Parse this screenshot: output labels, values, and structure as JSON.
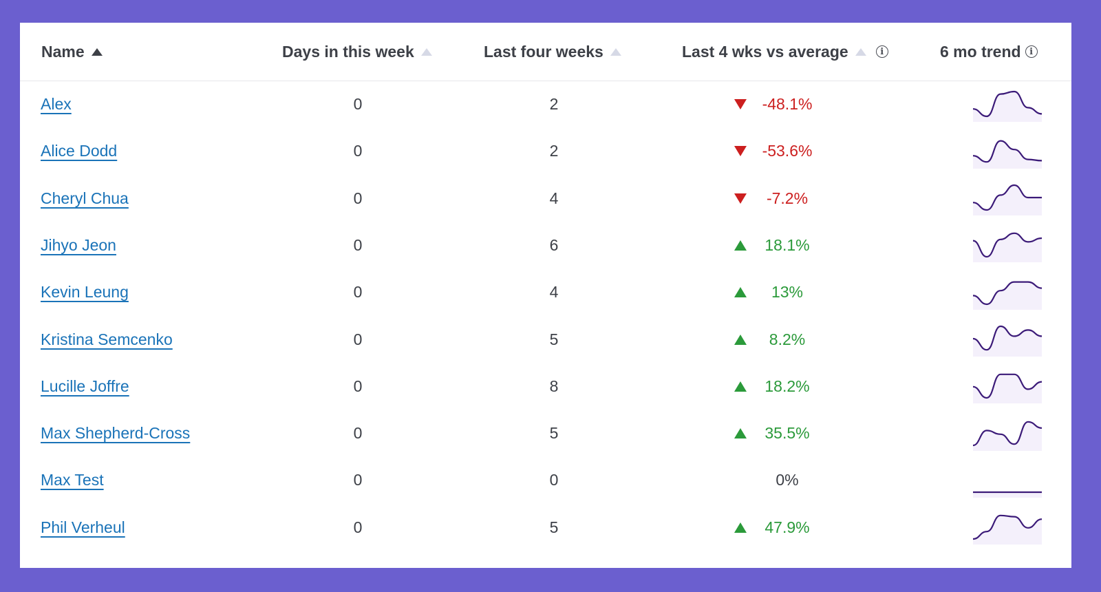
{
  "colors": {
    "background": "#6b5fcf",
    "link": "#1a73b8",
    "negative": "#cc1f1f",
    "positive": "#2b9a3a",
    "spark_line": "#3b1a78",
    "spark_fill": "#f4f0fb"
  },
  "header": {
    "name": "Name",
    "days": "Days in this week",
    "last4": "Last four weeks",
    "vsavg": "Last 4 wks vs average",
    "trend": "6 mo trend",
    "info_icon": "i"
  },
  "rows": [
    {
      "name": "Alex",
      "days": "0",
      "last4": "2",
      "pct": "-48.1%",
      "dir": "down",
      "trend": [
        0.3,
        0.0,
        0.9,
        1.0,
        0.35,
        0.1
      ]
    },
    {
      "name": "Alice Dodd",
      "days": "0",
      "last4": "2",
      "pct": "-53.6%",
      "dir": "down",
      "trend": [
        0.3,
        0.05,
        0.9,
        0.55,
        0.15,
        0.1
      ]
    },
    {
      "name": "Cheryl Chua",
      "days": "0",
      "last4": "4",
      "pct": "-7.2%",
      "dir": "down",
      "trend": [
        0.3,
        0.0,
        0.6,
        1.0,
        0.5,
        0.5
      ]
    },
    {
      "name": "Jihyo Jeon",
      "days": "0",
      "last4": "6",
      "pct": "18.1%",
      "dir": "up",
      "trend": [
        0.65,
        0.0,
        0.7,
        0.95,
        0.6,
        0.75
      ]
    },
    {
      "name": "Kevin Leung",
      "days": "0",
      "last4": "4",
      "pct": "13%",
      "dir": "up",
      "trend": [
        0.35,
        0.0,
        0.55,
        0.9,
        0.9,
        0.65
      ]
    },
    {
      "name": "Kristina Semcenko",
      "days": "0",
      "last4": "5",
      "pct": "8.2%",
      "dir": "up",
      "trend": [
        0.5,
        0.05,
        1.0,
        0.6,
        0.85,
        0.6
      ]
    },
    {
      "name": "Lucille Joffre",
      "days": "0",
      "last4": "8",
      "pct": "18.2%",
      "dir": "up",
      "trend": [
        0.45,
        0.0,
        0.95,
        0.95,
        0.35,
        0.65
      ]
    },
    {
      "name": "Max Shepherd-Cross",
      "days": "0",
      "last4": "5",
      "pct": "35.5%",
      "dir": "up",
      "trend": [
        0.0,
        0.6,
        0.45,
        0.05,
        0.95,
        0.7
      ]
    },
    {
      "name": "Max Test",
      "days": "0",
      "last4": "0",
      "pct": "0%",
      "dir": "none",
      "trend": [
        0,
        0,
        0,
        0,
        0,
        0
      ]
    },
    {
      "name": "Phil Verheul",
      "days": "0",
      "last4": "5",
      "pct": "47.9%",
      "dir": "up",
      "trend": [
        0.0,
        0.3,
        0.95,
        0.9,
        0.45,
        0.8
      ]
    }
  ]
}
